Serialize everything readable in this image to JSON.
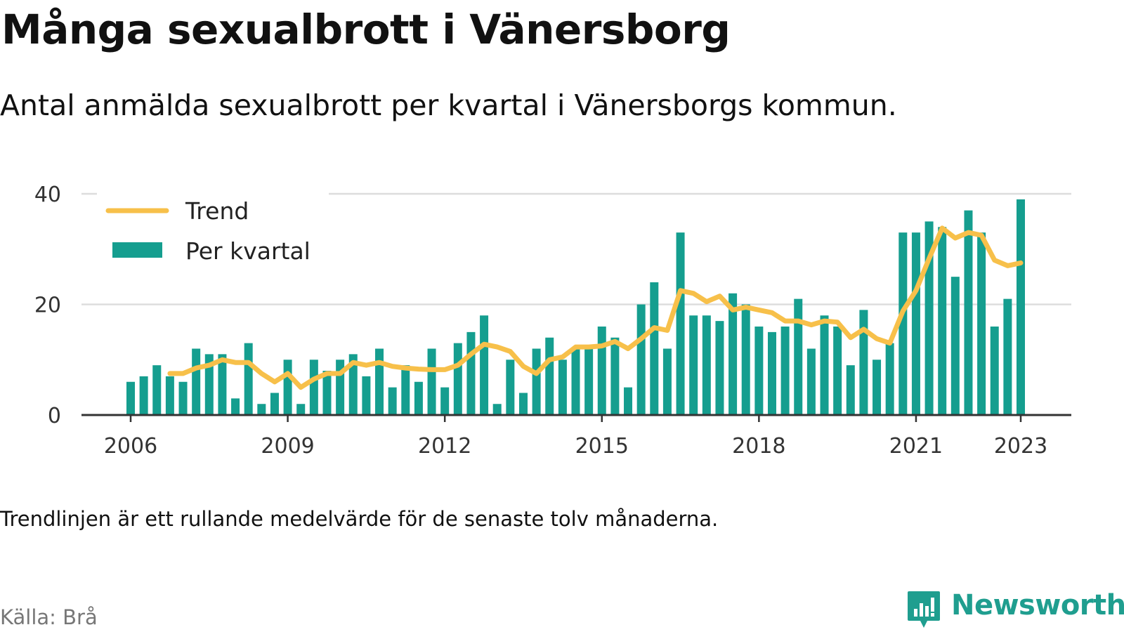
{
  "title": "Många sexualbrott i Vänersborg",
  "subtitle": "Antal anmälda sexualbrott per kvartal i Vänersborgs kommun.",
  "footnote": "Trendlinjen är ett rullande medelvärde för de senaste tolv månaderna.",
  "source": "Källa: Brå",
  "brand": {
    "name": "Newsworthy",
    "icon": "newsworthy-logo-icon",
    "color": "#1f9e8f"
  },
  "chart_data": {
    "type": "bar",
    "title": "Många sexualbrott i Vänersborg",
    "subtitle": "Antal anmälda sexualbrott per kvartal i Vänersborgs kommun.",
    "xlabel": "",
    "ylabel": "",
    "x_tick_labels": [
      "2006",
      "2009",
      "2012",
      "2015",
      "2018",
      "2021",
      "2023"
    ],
    "y_ticks": [
      0,
      20,
      40
    ],
    "ylim": [
      0,
      40
    ],
    "grid": true,
    "legend_position": "top-left",
    "x": [
      "2006 Q1",
      "2006 Q2",
      "2006 Q3",
      "2006 Q4",
      "2007 Q1",
      "2007 Q2",
      "2007 Q3",
      "2007 Q4",
      "2008 Q1",
      "2008 Q2",
      "2008 Q3",
      "2008 Q4",
      "2009 Q1",
      "2009 Q2",
      "2009 Q3",
      "2009 Q4",
      "2010 Q1",
      "2010 Q2",
      "2010 Q3",
      "2010 Q4",
      "2011 Q1",
      "2011 Q2",
      "2011 Q3",
      "2011 Q4",
      "2012 Q1",
      "2012 Q2",
      "2012 Q3",
      "2012 Q4",
      "2013 Q1",
      "2013 Q2",
      "2013 Q3",
      "2013 Q4",
      "2014 Q1",
      "2014 Q2",
      "2014 Q3",
      "2014 Q4",
      "2015 Q1",
      "2015 Q2",
      "2015 Q3",
      "2015 Q4",
      "2016 Q1",
      "2016 Q2",
      "2016 Q3",
      "2016 Q4",
      "2017 Q1",
      "2017 Q2",
      "2017 Q3",
      "2017 Q4",
      "2018 Q1",
      "2018 Q2",
      "2018 Q3",
      "2018 Q4",
      "2019 Q1",
      "2019 Q2",
      "2019 Q3",
      "2019 Q4",
      "2020 Q1",
      "2020 Q2",
      "2020 Q3",
      "2020 Q4",
      "2021 Q1",
      "2021 Q2",
      "2021 Q3",
      "2021 Q4",
      "2022 Q1",
      "2022 Q2",
      "2022 Q3",
      "2022 Q4",
      "2023 Q1"
    ],
    "series": [
      {
        "name": "Per kvartal",
        "type": "bar",
        "color": "#159e8f",
        "values": [
          6,
          7,
          9,
          7,
          6,
          12,
          11,
          11,
          3,
          13,
          2,
          4,
          10,
          2,
          10,
          8,
          10,
          11,
          7,
          12,
          5,
          9,
          6,
          12,
          5,
          13,
          15,
          18,
          2,
          10,
          4,
          12,
          14,
          10,
          12,
          12,
          16,
          14,
          5,
          20,
          24,
          12,
          33,
          18,
          18,
          17,
          22,
          20,
          16,
          15,
          16,
          21,
          12,
          18,
          16,
          9,
          19,
          10,
          13,
          33,
          33,
          35,
          34,
          25,
          37,
          33,
          16,
          21,
          39
        ]
      },
      {
        "name": "Trend",
        "type": "line",
        "color": "#f7c04a",
        "values": [
          null,
          null,
          null,
          7.5,
          7.5,
          8.5,
          9.0,
          10.0,
          9.5,
          9.5,
          7.5,
          6.0,
          7.5,
          5.0,
          6.5,
          7.5,
          7.5,
          9.5,
          9.0,
          9.5,
          8.8,
          8.5,
          8.3,
          8.2,
          8.2,
          9.0,
          11.0,
          12.8,
          12.3,
          11.5,
          8.8,
          7.5,
          10.0,
          10.5,
          12.3,
          12.3,
          12.5,
          13.3,
          12.0,
          13.8,
          15.8,
          15.3,
          22.5,
          22.0,
          20.5,
          21.5,
          19.0,
          19.5,
          19.0,
          18.5,
          17.0,
          17.0,
          16.3,
          17.0,
          16.8,
          14.0,
          15.5,
          13.8,
          13.0,
          18.8,
          22.5,
          28.3,
          33.8,
          32.0,
          33.0,
          32.5,
          28.0,
          27.0,
          27.5
        ]
      }
    ]
  }
}
